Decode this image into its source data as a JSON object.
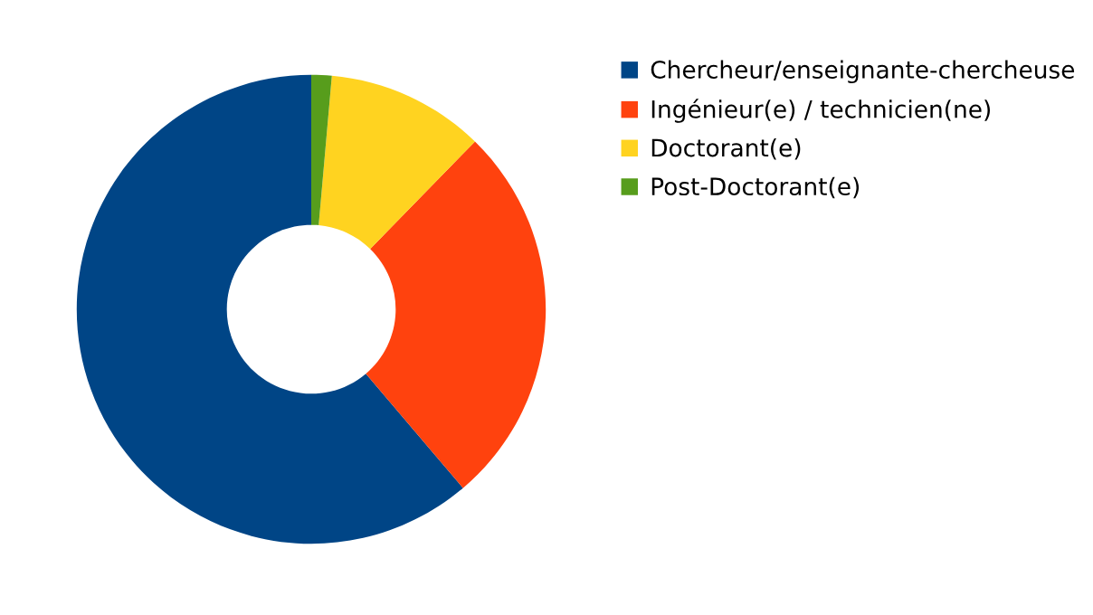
{
  "chart_data": {
    "type": "donut",
    "categories": [
      "Chercheur/enseignante-chercheuse",
      "Ingénieur(e) / technicien(ne)",
      "Doctorant(e)",
      "Post-Doctorant(e)"
    ],
    "values": [
      61.2,
      26.5,
      10.9,
      1.4
    ],
    "colors": [
      "#004586",
      "#ff420e",
      "#ffd320",
      "#579d1c"
    ],
    "legend": "top right"
  }
}
